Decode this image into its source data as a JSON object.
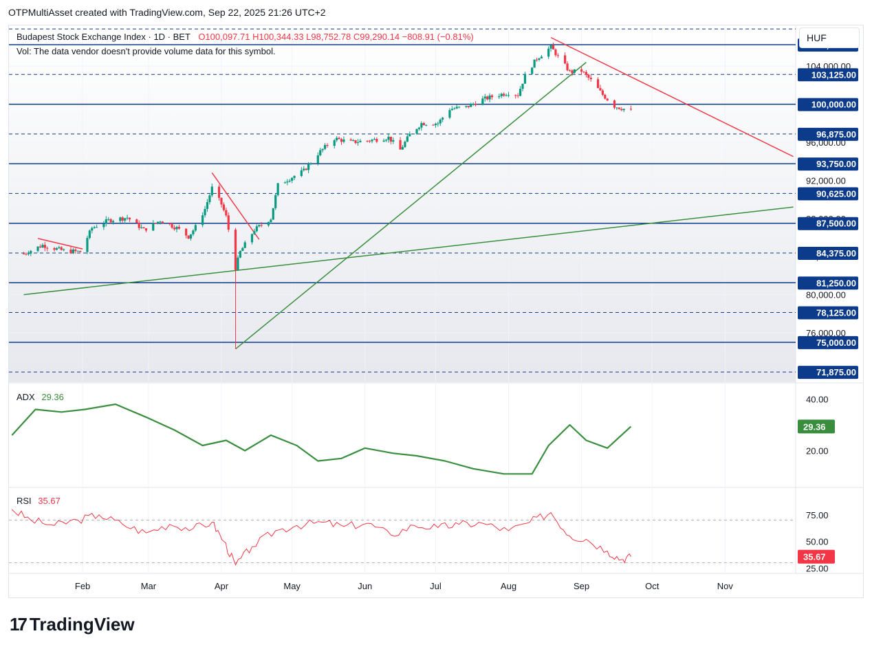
{
  "header": {
    "attribution": "OTPMultiAsset created with TradingView.com, Sep 22, 2025 21:26 UTC+2"
  },
  "legend": {
    "symbol": "Budapest Stock Exchange Index · 1D · BET",
    "ohlc": "O100,097.71 H100,344.33 L98,752.78 C99,290.14 −808.91 (−0.81%)",
    "volume_note": "Vol: The data vendor doesn't provide volume data for this symbol."
  },
  "currency": "HUF",
  "brand": "TradingView",
  "colors": {
    "up": "#089981",
    "down": "#f23645",
    "level": "#0d3b8c",
    "trend_green": "#388e3c",
    "trend_red": "#f23645",
    "adx": "#388e3c",
    "rsi": "#f23645"
  },
  "chart_data": [
    {
      "type": "candlestick",
      "title": "Budapest Stock Exchange Index",
      "x_ticks": [
        "Feb",
        "Mar",
        "Apr",
        "May",
        "Jun",
        "Jul",
        "Aug",
        "Sep",
        "Oct",
        "Nov"
      ],
      "y_ticks": [
        "104,000.00",
        "100,000.00",
        "96,000.00",
        "92,000.00",
        "88,000.00",
        "84,000.00",
        "80,000.00",
        "76,000.00"
      ],
      "ylim": [
        70800,
        108200
      ],
      "last_close": 99290.14,
      "horizontal_levels": [
        {
          "value": 106250,
          "label": "106,250.00",
          "style": "solid"
        },
        {
          "value": 103125,
          "label": "103,125.00",
          "style": "dashed"
        },
        {
          "value": 100000,
          "label": "100,000.00",
          "style": "solid"
        },
        {
          "value": 96875,
          "label": "96,875.00",
          "style": "dashed"
        },
        {
          "value": 93750,
          "label": "93,750.00",
          "style": "solid"
        },
        {
          "value": 90625,
          "label": "90,625.00",
          "style": "dashed"
        },
        {
          "value": 87500,
          "label": "87,500.00",
          "style": "solid"
        },
        {
          "value": 84375,
          "label": "84,375.00",
          "style": "dashed"
        },
        {
          "value": 81250,
          "label": "81,250.00",
          "style": "solid"
        },
        {
          "value": 78125,
          "label": "78,125.00",
          "style": "dashed"
        },
        {
          "value": 75000,
          "label": "75,000.00",
          "style": "solid"
        },
        {
          "value": 71875,
          "label": "71,875.00",
          "style": "dashed"
        },
        {
          "value": 107900,
          "label": "",
          "style": "dashed"
        }
      ],
      "trendlines": [
        {
          "color": "green",
          "from": [
            "2025-01-07",
            80000
          ],
          "to": [
            "2025-11-30",
            89200
          ]
        },
        {
          "color": "green",
          "from": [
            "2025-04-07",
            74300
          ],
          "to": [
            "2025-09-03",
            104400
          ]
        },
        {
          "color": "red",
          "from": [
            "2025-08-19",
            107000
          ],
          "to": [
            "2025-11-30",
            94500
          ]
        },
        {
          "color": "red",
          "from": [
            "2025-03-28",
            92800
          ],
          "to": [
            "2025-04-17",
            85800
          ]
        },
        {
          "color": "red",
          "from": [
            "2025-01-13",
            85900
          ],
          "to": [
            "2025-02-01",
            84800
          ]
        }
      ],
      "close_path": [
        [
          "2025-01-07",
          84300
        ],
        [
          "2025-01-15",
          85200
        ],
        [
          "2025-01-24",
          84600
        ],
        [
          "2025-01-31",
          84500
        ],
        [
          "2025-02-05",
          87000
        ],
        [
          "2025-02-12",
          87800
        ],
        [
          "2025-02-20",
          88100
        ],
        [
          "2025-02-27",
          86800
        ],
        [
          "2025-03-06",
          87800
        ],
        [
          "2025-03-13",
          87000
        ],
        [
          "2025-03-18",
          86100
        ],
        [
          "2025-03-21",
          87100
        ],
        [
          "2025-03-25",
          89000
        ],
        [
          "2025-03-28",
          91200
        ],
        [
          "2025-04-01",
          89500
        ],
        [
          "2025-04-03",
          88200
        ],
        [
          "2025-04-07",
          82800
        ],
        [
          "2025-04-09",
          84500
        ],
        [
          "2025-04-15",
          86800
        ],
        [
          "2025-04-22",
          88000
        ],
        [
          "2025-04-25",
          91500
        ],
        [
          "2025-04-30",
          92200
        ],
        [
          "2025-05-06",
          93000
        ],
        [
          "2025-05-12",
          94800
        ],
        [
          "2025-05-19",
          96400
        ],
        [
          "2025-05-26",
          96000
        ],
        [
          "2025-06-03",
          96200
        ],
        [
          "2025-06-11",
          96500
        ],
        [
          "2025-06-16",
          95200
        ],
        [
          "2025-06-20",
          96800
        ],
        [
          "2025-06-25",
          98000
        ],
        [
          "2025-07-02",
          98000
        ],
        [
          "2025-07-07",
          99500
        ],
        [
          "2025-07-14",
          99700
        ],
        [
          "2025-07-21",
          100500
        ],
        [
          "2025-07-28",
          101000
        ],
        [
          "2025-08-01",
          101200
        ],
        [
          "2025-08-05",
          101000
        ],
        [
          "2025-08-08",
          103000
        ],
        [
          "2025-08-13",
          104800
        ],
        [
          "2025-08-19",
          106000
        ],
        [
          "2025-08-22",
          105000
        ],
        [
          "2025-08-27",
          103400
        ],
        [
          "2025-09-01",
          103500
        ],
        [
          "2025-09-05",
          102500
        ],
        [
          "2025-09-10",
          101000
        ],
        [
          "2025-09-15",
          99800
        ],
        [
          "2025-09-22",
          99290
        ]
      ]
    },
    {
      "type": "line",
      "title": "ADX",
      "series": [
        {
          "name": "ADX",
          "last": "29.36",
          "points": [
            [
              "2025-01-02",
              26
            ],
            [
              "2025-01-12",
              36
            ],
            [
              "2025-01-23",
              35
            ],
            [
              "2025-02-02",
              36
            ],
            [
              "2025-02-15",
              38
            ],
            [
              "2025-02-28",
              33
            ],
            [
              "2025-03-12",
              28
            ],
            [
              "2025-03-24",
              22
            ],
            [
              "2025-04-03",
              24
            ],
            [
              "2025-04-11",
              20
            ],
            [
              "2025-04-22",
              26
            ],
            [
              "2025-05-03",
              22
            ],
            [
              "2025-05-12",
              16
            ],
            [
              "2025-05-22",
              17
            ],
            [
              "2025-06-01",
              21
            ],
            [
              "2025-06-13",
              19
            ],
            [
              "2025-06-23",
              18
            ],
            [
              "2025-07-05",
              16
            ],
            [
              "2025-07-17",
              13
            ],
            [
              "2025-07-30",
              11
            ],
            [
              "2025-08-11",
              11
            ],
            [
              "2025-08-18",
              22
            ],
            [
              "2025-08-27",
              30
            ],
            [
              "2025-09-03",
              24
            ],
            [
              "2025-09-12",
              21
            ],
            [
              "2025-09-22",
              29.36
            ]
          ]
        }
      ],
      "y_ticks": [
        "40.00",
        "20.00"
      ],
      "ylim": [
        6,
        46
      ]
    },
    {
      "type": "line",
      "title": "RSI",
      "series": [
        {
          "name": "RSI",
          "last": "35.67",
          "points": [
            [
              "2025-01-02",
              80
            ],
            [
              "2025-01-10",
              70
            ],
            [
              "2025-01-20",
              65
            ],
            [
              "2025-01-30",
              70
            ],
            [
              "2025-02-08",
              75
            ],
            [
              "2025-02-18",
              66
            ],
            [
              "2025-02-28",
              58
            ],
            [
              "2025-03-10",
              66
            ],
            [
              "2025-03-20",
              62
            ],
            [
              "2025-03-28",
              68
            ],
            [
              "2025-04-02",
              50
            ],
            [
              "2025-04-07",
              28
            ],
            [
              "2025-04-14",
              45
            ],
            [
              "2025-04-24",
              60
            ],
            [
              "2025-05-03",
              65
            ],
            [
              "2025-05-14",
              68
            ],
            [
              "2025-05-23",
              64
            ],
            [
              "2025-06-02",
              67
            ],
            [
              "2025-06-12",
              56
            ],
            [
              "2025-06-22",
              65
            ],
            [
              "2025-07-02",
              63
            ],
            [
              "2025-07-11",
              66
            ],
            [
              "2025-07-21",
              67
            ],
            [
              "2025-08-01",
              60
            ],
            [
              "2025-08-10",
              68
            ],
            [
              "2025-08-19",
              77
            ],
            [
              "2025-08-27",
              55
            ],
            [
              "2025-09-03",
              52
            ],
            [
              "2025-09-12",
              41
            ],
            [
              "2025-09-18",
              33
            ],
            [
              "2025-09-22",
              35.67
            ]
          ]
        }
      ],
      "y_ticks": [
        "75.00",
        "50.00",
        "25.00"
      ],
      "ylim": [
        20,
        100
      ]
    }
  ]
}
